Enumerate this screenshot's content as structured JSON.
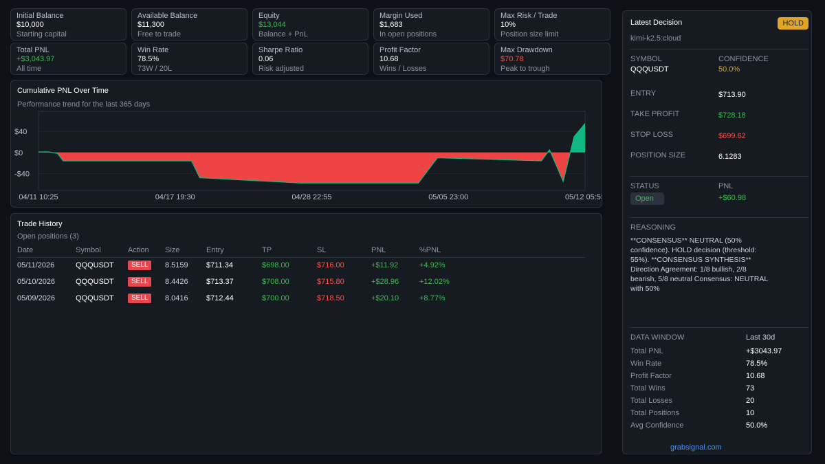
{
  "stats_row1": [
    {
      "label": "Initial Balance",
      "value": "$10,000",
      "sub": "Starting capital",
      "color": "#ffffff"
    },
    {
      "label": "Available Balance",
      "value": "$11,300",
      "sub": "Free to trade",
      "color": "#ffffff"
    },
    {
      "label": "Equity",
      "value": "$13,044",
      "sub": "Balance + PnL",
      "color": "#3fb950"
    },
    {
      "label": "Margin Used",
      "value": "$1,683",
      "sub": "In open positions",
      "color": "#ffffff"
    },
    {
      "label": "Max Risk / Trade",
      "value": "10%",
      "sub": "Position size limit",
      "color": "#ffffff"
    }
  ],
  "stats_row2": [
    {
      "label": "Total PNL",
      "value": "+$3,043.97",
      "sub": "All time",
      "color": "#3fb950"
    },
    {
      "label": "Win Rate",
      "value": "78.5%",
      "sub": "73W / 20L",
      "color": "#ffffff"
    },
    {
      "label": "Sharpe Ratio",
      "value": "0.06",
      "sub": "Risk adjusted",
      "color": "#ffffff"
    },
    {
      "label": "Profit Factor",
      "value": "10.68",
      "sub": "Wins / Losses",
      "color": "#ffffff"
    },
    {
      "label": "Max Drawdown",
      "value": "$70.78",
      "sub": "Peak to trough",
      "color": "#f85149"
    }
  ],
  "pnl_chart": {
    "title": "Cumulative PNL Over Time",
    "subtitle": "Performance trend for the last 365 days",
    "y_ticks": [
      "$40",
      "$0",
      "-$40"
    ],
    "x_ticks": [
      "04/11 10:25",
      "04/17 19:30",
      "04/28 22:55",
      "05/05 23:00",
      "05/12 05:55"
    ]
  },
  "chart_data": {
    "type": "area",
    "title": "Cumulative PNL Over Time",
    "ylim": [
      -72,
      78
    ],
    "xlim": [
      0,
      100
    ],
    "x_tick_labels": [
      "04/11 10:25",
      "04/17 19:30",
      "04/28 22:55",
      "05/05 23:00",
      "05/12 05:55"
    ],
    "x": [
      0,
      2,
      3.5,
      4.5,
      6.5,
      28,
      29.5,
      48,
      69.5,
      73,
      92,
      93.5,
      96,
      98,
      100
    ],
    "values": [
      1,
      1,
      -2,
      -16,
      -16,
      -16,
      -48,
      -58,
      -58,
      -10,
      -16,
      5,
      -55,
      30,
      55
    ],
    "colors": {
      "positive": "#10b981",
      "negative": "#ef4444"
    }
  },
  "trade_history": {
    "title": "Trade History",
    "subtitle": "Open positions (3)",
    "columns": [
      "Date",
      "Symbol",
      "Action",
      "Size",
      "Entry",
      "TP",
      "SL",
      "PNL",
      "%PNL"
    ],
    "rows": [
      [
        "05/11/2026",
        "QQQUSDT",
        "SELL",
        "8.5159",
        "$711.34",
        "$698.00",
        "$716.00",
        "+$11.92",
        "+4.92%"
      ],
      [
        "05/10/2026",
        "QQQUSDT",
        "SELL",
        "8.4426",
        "$713.37",
        "$708.00",
        "$715.80",
        "+$28.96",
        "+12.02%"
      ],
      [
        "05/09/2026",
        "QQQUSDT",
        "SELL",
        "8.0416",
        "$712.44",
        "$700.00",
        "$718.50",
        "+$20.10",
        "+8.77%"
      ]
    ]
  },
  "decision": {
    "title": "Latest Decision",
    "badge": "HOLD",
    "model": "kimi-k2.5:cloud",
    "symbol_label": "SYMBOL",
    "symbol": "QQQUSDT",
    "confidence_label": "CONFIDENCE",
    "confidence": "50.0%",
    "entry_label": "ENTRY",
    "entry": "$713.90",
    "tp_label": "TAKE PROFIT",
    "tp": "$728.18",
    "sl_label": "STOP LOSS",
    "sl": "$699.62",
    "size_label": "POSITION SIZE",
    "size": "6.1283",
    "status_label": "STATUS",
    "status": "Open",
    "pnl_label": "PNL",
    "pnl": "+$60.98",
    "reasoning_label": "REASONING",
    "reasoning": "**CONSENSUS** NEUTRAL (50% confidence). HOLD decision (threshold: 55%). **CONSENSUS SYNTHESIS** Direction Agreement: 1/8 bullish, 2/8 bearish, 5/8 neutral Consensus: NEUTRAL with 50%",
    "data_window_label": "DATA WINDOW",
    "data_window": "Last 30d",
    "metrics": [
      {
        "label": "Total PNL",
        "value": "+$3043.97"
      },
      {
        "label": "Win Rate",
        "value": "78.5%"
      },
      {
        "label": "Profit Factor",
        "value": "10.68"
      },
      {
        "label": "Total Wins",
        "value": "73"
      },
      {
        "label": "Total Losses",
        "value": "20"
      },
      {
        "label": "Total Positions",
        "value": "10"
      },
      {
        "label": "Avg Confidence",
        "value": "50.0%"
      }
    ],
    "footer_link": "grabsignal.com"
  }
}
